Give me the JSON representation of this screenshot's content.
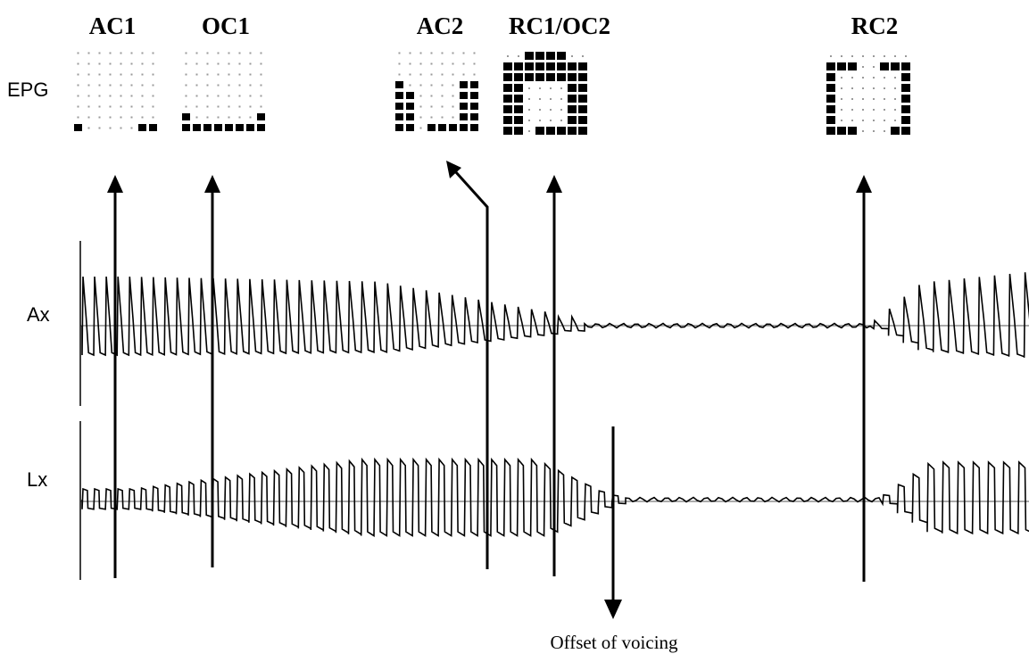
{
  "phase_labels": [
    "AC1",
    "OC1",
    "AC2",
    "RC1/OC2",
    "RC2"
  ],
  "row_labels": {
    "epg": "EPG",
    "ax": "Ax",
    "lx": "Lx"
  },
  "caption": "Offset of voicing",
  "epg_frames": [
    {
      "name": "AC1",
      "rows": [
        "00000000",
        "00000000",
        "00000000",
        "00000000",
        "00000000",
        "00000000",
        "00000000",
        "10000011"
      ]
    },
    {
      "name": "OC1",
      "rows": [
        "00000000",
        "00000000",
        "00000000",
        "00000000",
        "00000000",
        "00000000",
        "10000001",
        "11111111"
      ]
    },
    {
      "name": "AC2",
      "rows": [
        "00000000",
        "00000000",
        "00000000",
        "10000011",
        "11000011",
        "11000011",
        "11000011",
        "11011111"
      ]
    },
    {
      "name": "RC1/OC2",
      "rows": [
        "00111100",
        "11111111",
        "11111111",
        "11000011",
        "11000011",
        "11000011",
        "11000011",
        "11011111"
      ]
    },
    {
      "name": "RC2",
      "rows": [
        "00000000",
        "11100111",
        "10000001",
        "10000001",
        "10000001",
        "10000001",
        "10000001",
        "11100011"
      ]
    }
  ]
}
